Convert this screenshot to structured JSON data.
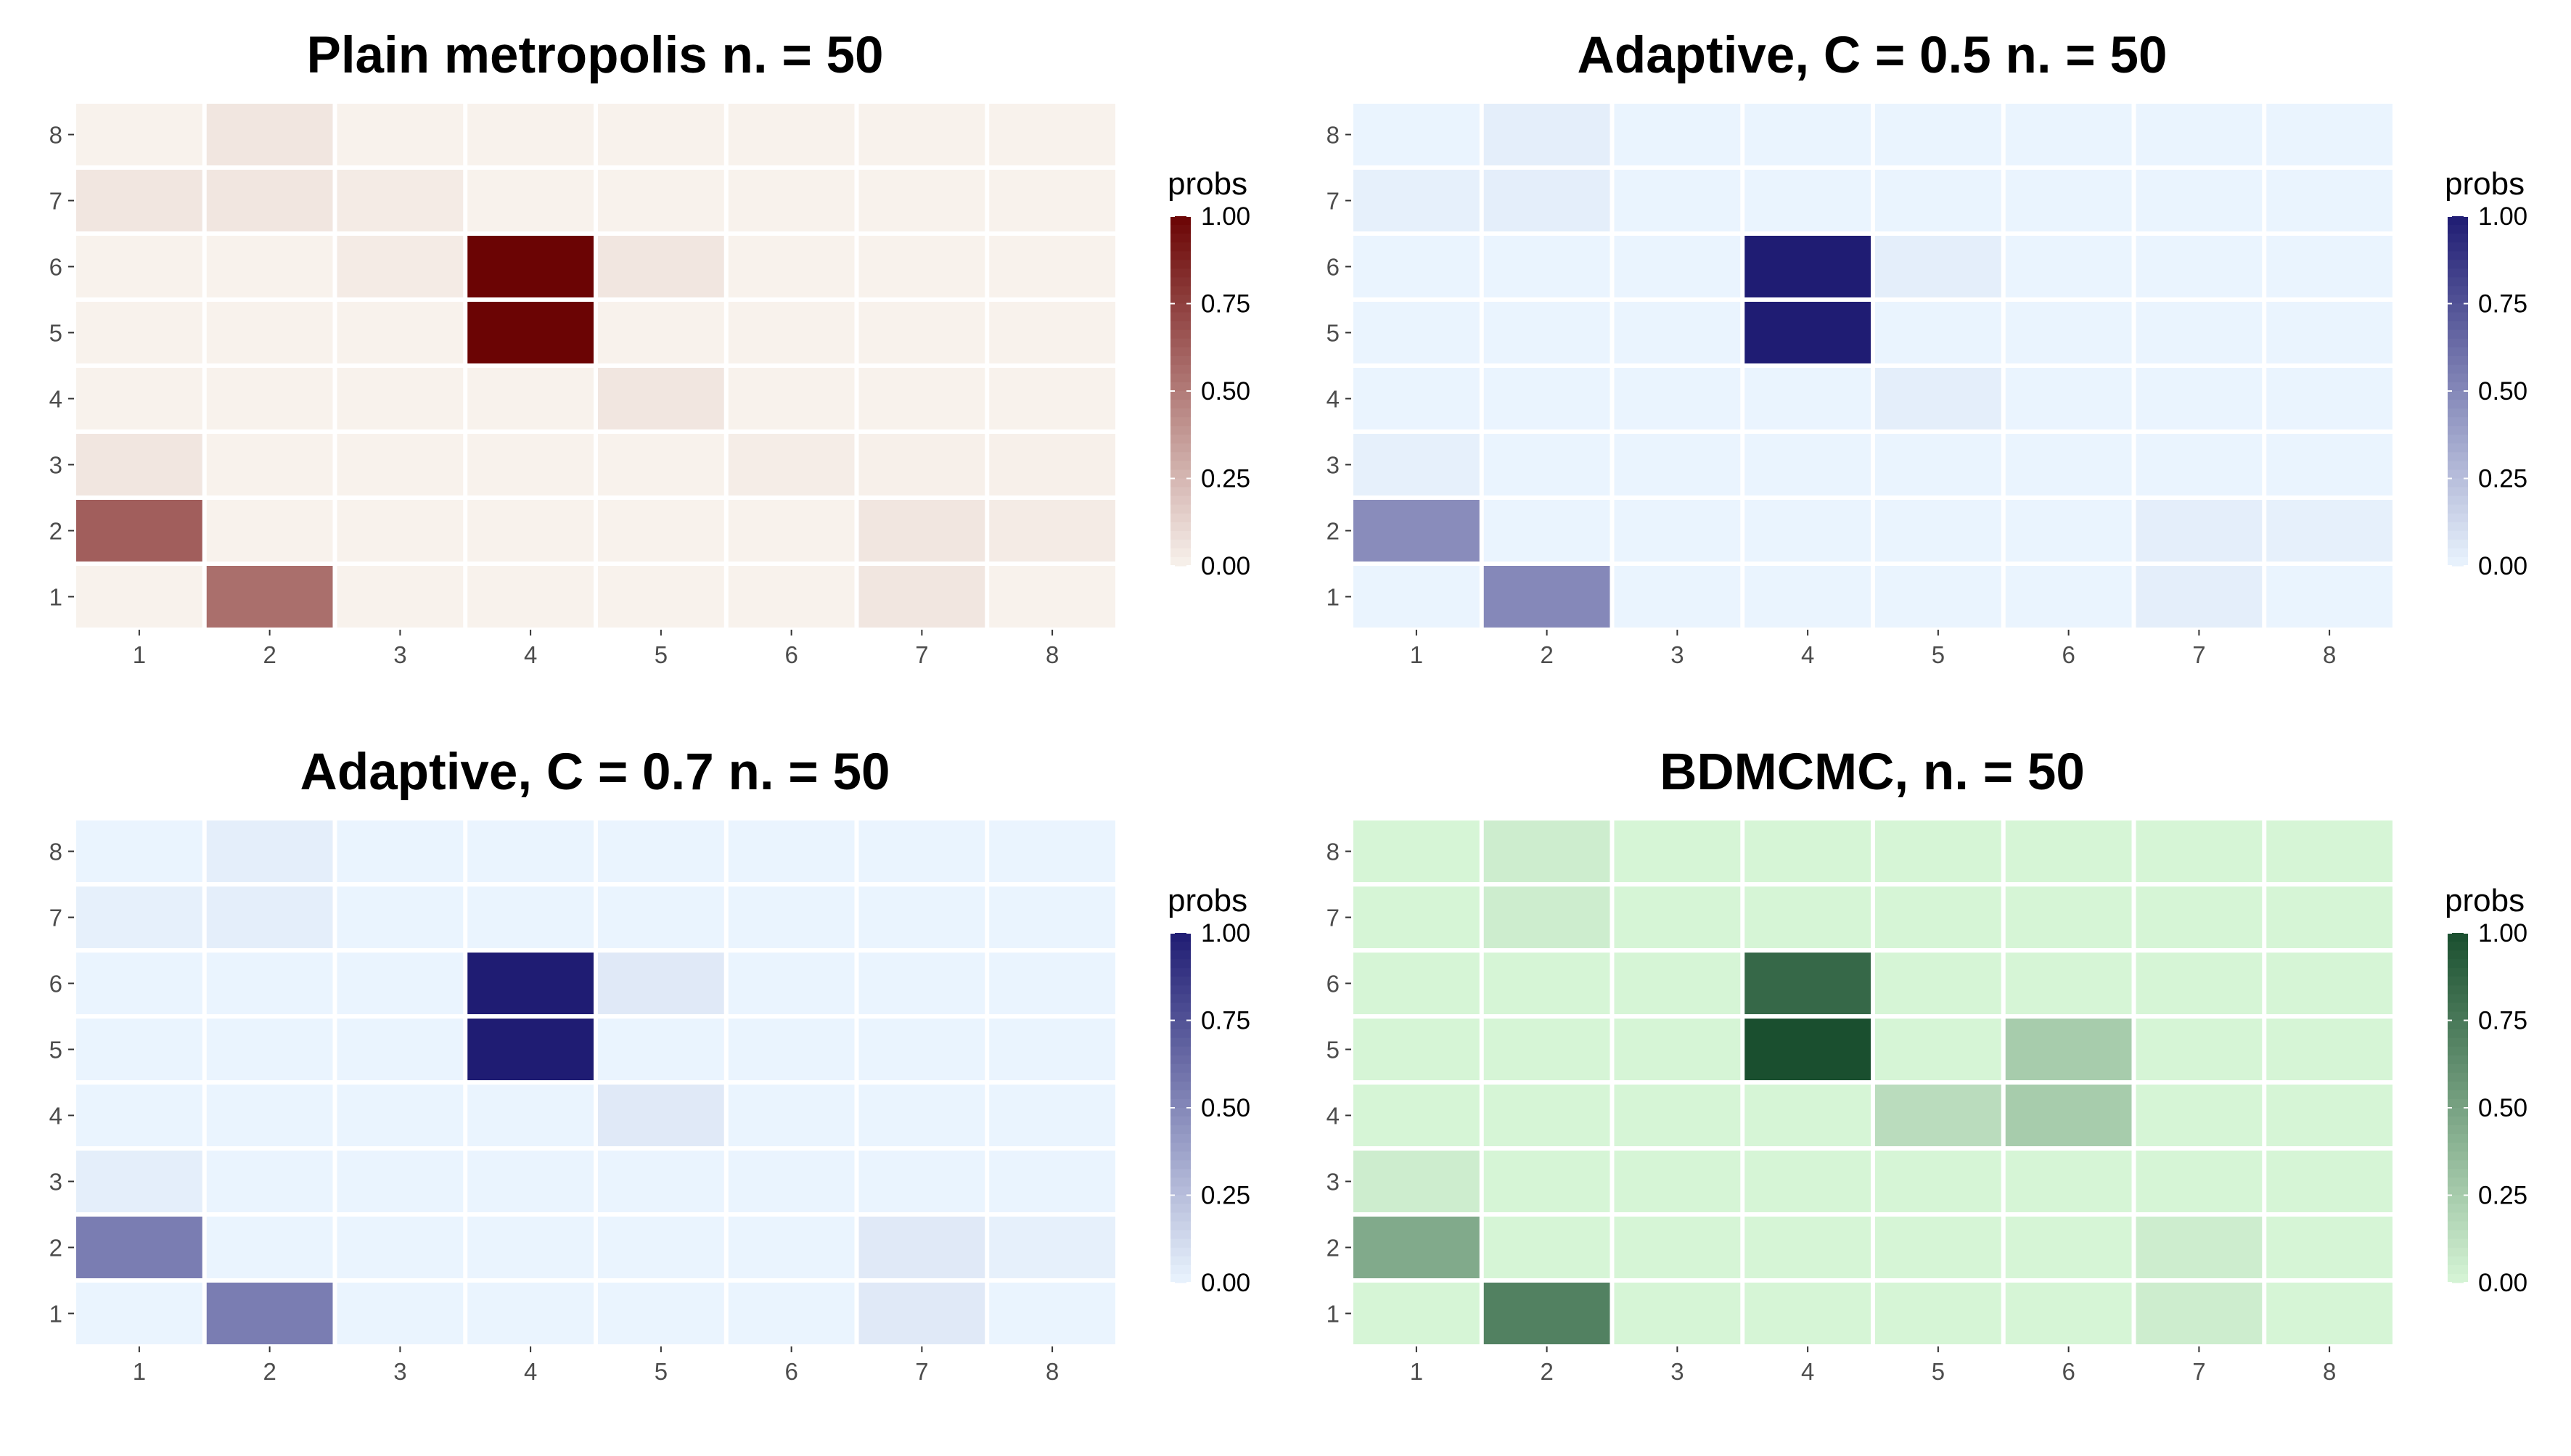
{
  "chart_data": [
    {
      "type": "heatmap",
      "title": "Plain metropolis n. = 50",
      "x_categories": [
        "1",
        "2",
        "3",
        "4",
        "5",
        "6",
        "7",
        "8"
      ],
      "y_categories": [
        "1",
        "2",
        "3",
        "4",
        "5",
        "6",
        "7",
        "8"
      ],
      "legend": {
        "title": "probs",
        "ticks": [
          "0.00",
          "0.25",
          "0.50",
          "0.75",
          "1.00"
        ],
        "position": "right"
      },
      "colors": {
        "low": "#f8f2ec",
        "high": "#6b0404"
      },
      "values": [
        [
          0.0,
          0.55,
          0.0,
          0.0,
          0.0,
          0.0,
          0.05,
          0.0
        ],
        [
          0.62,
          0.0,
          0.0,
          0.0,
          0.0,
          0.0,
          0.05,
          0.03
        ],
        [
          0.05,
          0.0,
          0.0,
          0.0,
          0.0,
          0.02,
          0.01,
          0.01
        ],
        [
          0.0,
          0.0,
          0.0,
          0.0,
          0.05,
          0.0,
          0.0,
          0.0
        ],
        [
          0.0,
          0.0,
          0.0,
          1.0,
          0.0,
          0.0,
          0.0,
          0.0
        ],
        [
          0.0,
          0.0,
          0.03,
          1.0,
          0.05,
          0.0,
          0.0,
          0.0
        ],
        [
          0.05,
          0.05,
          0.03,
          0.0,
          0.0,
          0.0,
          0.0,
          0.0
        ],
        [
          0.0,
          0.05,
          0.0,
          0.0,
          0.0,
          0.0,
          0.0,
          0.0
        ]
      ]
    },
    {
      "type": "heatmap",
      "title": "Adaptive, C = 0.5 n. = 50",
      "x_categories": [
        "1",
        "2",
        "3",
        "4",
        "5",
        "6",
        "7",
        "8"
      ],
      "y_categories": [
        "1",
        "2",
        "3",
        "4",
        "5",
        "6",
        "7",
        "8"
      ],
      "legend": {
        "title": "probs",
        "ticks": [
          "0.00",
          "0.25",
          "0.50",
          "0.75",
          "1.00"
        ],
        "position": "right"
      },
      "colors": {
        "low": "#eaf4fe",
        "high": "#1f1c73"
      },
      "values": [
        [
          0.0,
          0.5,
          0.0,
          0.0,
          0.0,
          0.0,
          0.03,
          0.0
        ],
        [
          0.48,
          0.0,
          0.0,
          0.0,
          0.0,
          0.0,
          0.03,
          0.02
        ],
        [
          0.02,
          0.0,
          0.0,
          0.0,
          0.0,
          0.0,
          0.0,
          0.0
        ],
        [
          0.0,
          0.0,
          0.0,
          0.0,
          0.03,
          0.0,
          0.0,
          0.0
        ],
        [
          0.0,
          0.0,
          0.0,
          1.0,
          0.0,
          0.0,
          0.0,
          0.0
        ],
        [
          0.0,
          0.0,
          0.0,
          1.0,
          0.03,
          0.0,
          0.0,
          0.0
        ],
        [
          0.02,
          0.03,
          0.0,
          0.0,
          0.0,
          0.0,
          0.0,
          0.0
        ],
        [
          0.0,
          0.03,
          0.0,
          0.0,
          0.0,
          0.0,
          0.0,
          0.0
        ]
      ]
    },
    {
      "type": "heatmap",
      "title": "Adaptive, C = 0.7 n. = 50",
      "x_categories": [
        "1",
        "2",
        "3",
        "4",
        "5",
        "6",
        "7",
        "8"
      ],
      "y_categories": [
        "1",
        "2",
        "3",
        "4",
        "5",
        "6",
        "7",
        "8"
      ],
      "legend": {
        "title": "probs",
        "ticks": [
          "0.00",
          "0.25",
          "0.50",
          "0.75",
          "1.00"
        ],
        "position": "right"
      },
      "colors": {
        "low": "#eaf4fe",
        "high": "#1f1c73"
      },
      "values": [
        [
          0.0,
          0.55,
          0.0,
          0.0,
          0.0,
          0.0,
          0.05,
          0.0
        ],
        [
          0.55,
          0.0,
          0.0,
          0.0,
          0.0,
          0.0,
          0.05,
          0.02
        ],
        [
          0.03,
          0.0,
          0.0,
          0.0,
          0.0,
          0.0,
          0.0,
          0.0
        ],
        [
          0.0,
          0.0,
          0.0,
          0.0,
          0.05,
          0.0,
          0.0,
          0.0
        ],
        [
          0.0,
          0.0,
          0.0,
          1.0,
          0.0,
          0.0,
          0.0,
          0.0
        ],
        [
          0.0,
          0.0,
          0.0,
          1.0,
          0.05,
          0.0,
          0.0,
          0.0
        ],
        [
          0.02,
          0.03,
          0.0,
          0.0,
          0.0,
          0.0,
          0.0,
          0.0
        ],
        [
          0.0,
          0.03,
          0.0,
          0.0,
          0.0,
          0.0,
          0.0,
          0.0
        ]
      ]
    },
    {
      "type": "heatmap",
      "title": "BDMCMC, n. = 50",
      "x_categories": [
        "1",
        "2",
        "3",
        "4",
        "5",
        "6",
        "7",
        "8"
      ],
      "y_categories": [
        "1",
        "2",
        "3",
        "4",
        "5",
        "6",
        "7",
        "8"
      ],
      "legend": {
        "title": "probs",
        "ticks": [
          "0.00",
          "0.25",
          "0.50",
          "0.75",
          "1.00"
        ],
        "position": "right"
      },
      "colors": {
        "low": "#d6f5d6",
        "high": "#1a4f2f"
      },
      "values": [
        [
          0.0,
          0.7,
          0.0,
          0.0,
          0.0,
          0.0,
          0.05,
          0.0
        ],
        [
          0.45,
          0.0,
          0.0,
          0.0,
          0.0,
          0.0,
          0.05,
          0.0
        ],
        [
          0.05,
          0.0,
          0.0,
          0.0,
          0.0,
          0.0,
          0.0,
          0.0
        ],
        [
          0.0,
          0.0,
          0.0,
          0.0,
          0.15,
          0.25,
          0.0,
          0.0
        ],
        [
          0.0,
          0.0,
          0.0,
          1.0,
          0.0,
          0.25,
          0.0,
          0.0
        ],
        [
          0.0,
          0.0,
          0.0,
          0.85,
          0.0,
          0.0,
          0.0,
          0.0
        ],
        [
          0.0,
          0.05,
          0.0,
          0.0,
          0.0,
          0.0,
          0.0,
          0.0
        ],
        [
          0.0,
          0.05,
          0.0,
          0.0,
          0.0,
          0.0,
          0.0,
          0.0
        ]
      ]
    }
  ]
}
